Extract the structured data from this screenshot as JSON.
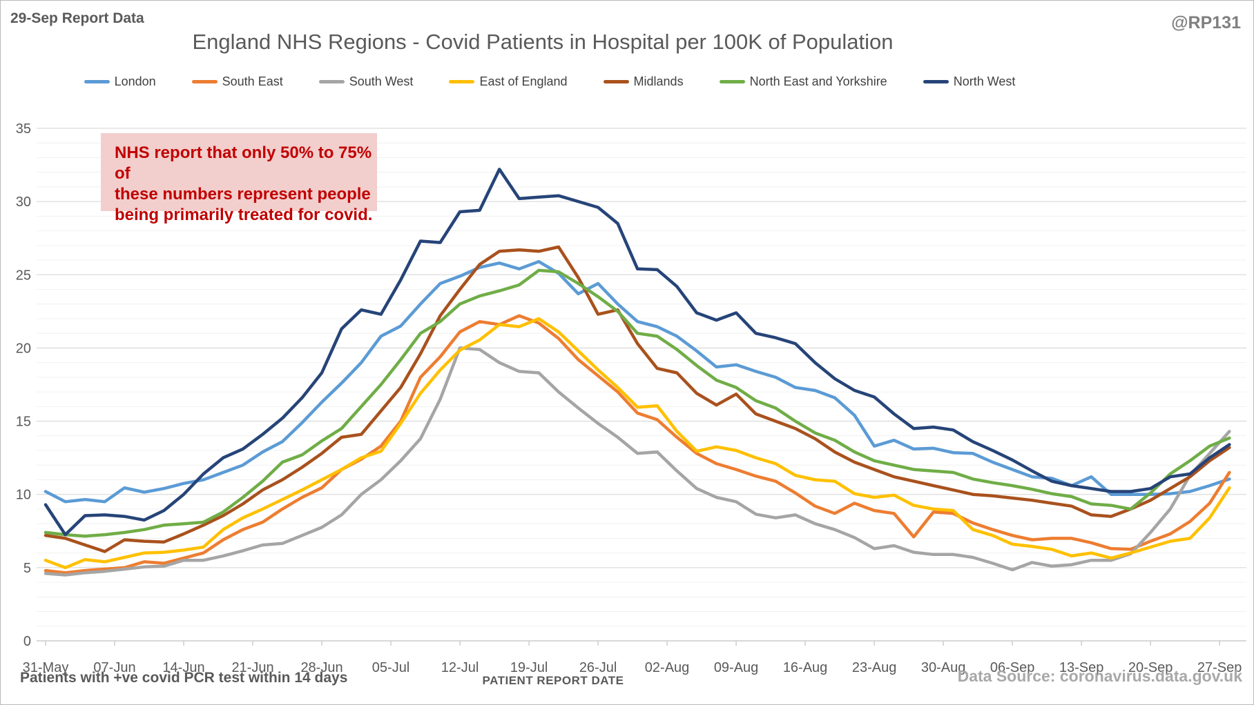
{
  "header": {
    "report_label": "29-Sep Report Data",
    "handle": "@RP131",
    "title": "England NHS Regions - Covid Patients in Hospital per 100K of Population"
  },
  "annotation": {
    "lines": [
      "NHS report that only 50% to 75% of",
      "these numbers represent people",
      "being primarily treated for covid."
    ]
  },
  "footer": {
    "left": "Patients with +ve covid PCR test within 14 days",
    "axis_title": "PATIENT REPORT DATE",
    "source": "Data Source: coronavirus.data.gov.uk"
  },
  "chart_data": {
    "type": "line",
    "title": "England NHS Regions - Covid Patients in Hospital per 100K of Population",
    "xlabel": "PATIENT REPORT DATE",
    "ylabel": "",
    "ylim": [
      0,
      35
    ],
    "y_ticks": [
      0,
      5,
      10,
      15,
      20,
      25,
      30,
      35
    ],
    "grid": "horizontal, minor every 1, major every 5",
    "legend_position": "top",
    "x_unit": "days since 31-May, data sampled every 2 days, series end 28-Sep",
    "x_step": 2,
    "x_total_days": 120,
    "x_ticks": [
      {
        "label": "31-May",
        "day": 0
      },
      {
        "label": "07-Jun",
        "day": 7
      },
      {
        "label": "14-Jun",
        "day": 14
      },
      {
        "label": "21-Jun",
        "day": 21
      },
      {
        "label": "28-Jun",
        "day": 28
      },
      {
        "label": "05-Jul",
        "day": 35
      },
      {
        "label": "12-Jul",
        "day": 42
      },
      {
        "label": "19-Jul",
        "day": 49
      },
      {
        "label": "26-Jul",
        "day": 56
      },
      {
        "label": "02-Aug",
        "day": 63
      },
      {
        "label": "09-Aug",
        "day": 70
      },
      {
        "label": "16-Aug",
        "day": 77
      },
      {
        "label": "23-Aug",
        "day": 84
      },
      {
        "label": "30-Aug",
        "day": 91
      },
      {
        "label": "06-Sep",
        "day": 98
      },
      {
        "label": "13-Sep",
        "day": 105
      },
      {
        "label": "20-Sep",
        "day": 112
      },
      {
        "label": "27-Sep",
        "day": 119
      }
    ],
    "series": [
      {
        "name": "London",
        "color": "#5B9BD5",
        "values": [
          10.2,
          9.5,
          9.65,
          9.5,
          10.45,
          10.15,
          10.4,
          10.75,
          11.0,
          11.5,
          12.0,
          12.9,
          13.6,
          14.9,
          16.3,
          17.6,
          19.0,
          20.8,
          21.5,
          23.0,
          24.4,
          24.9,
          25.5,
          25.8,
          25.4,
          25.9,
          25.1,
          23.7,
          24.4,
          23.0,
          21.8,
          21.45,
          20.8,
          19.8,
          18.7,
          18.85,
          18.4,
          18.0,
          17.3,
          17.1,
          16.6,
          15.4,
          13.3,
          13.7,
          13.1,
          13.15,
          12.85,
          12.8,
          12.2,
          11.7,
          11.2,
          11.1,
          10.6,
          11.2,
          10.0,
          10.0,
          10.0,
          10.05,
          10.2,
          10.6,
          11.05
        ]
      },
      {
        "name": "South East",
        "color": "#ED7D31",
        "values": [
          4.8,
          4.65,
          4.8,
          4.9,
          5.0,
          5.4,
          5.3,
          5.65,
          6.0,
          6.9,
          7.6,
          8.1,
          9.0,
          9.8,
          10.45,
          11.7,
          12.4,
          13.3,
          15.0,
          18.0,
          19.4,
          21.1,
          21.8,
          21.6,
          22.2,
          21.7,
          20.65,
          19.2,
          18.1,
          17.0,
          15.55,
          15.1,
          13.9,
          12.8,
          12.1,
          11.7,
          11.25,
          10.9,
          10.1,
          9.2,
          8.7,
          9.4,
          8.9,
          8.7,
          7.1,
          8.8,
          8.7,
          8.05,
          7.6,
          7.2,
          6.9,
          7.0,
          7.0,
          6.7,
          6.3,
          6.25,
          6.8,
          7.3,
          8.15,
          9.4,
          11.5
        ]
      },
      {
        "name": "South West",
        "color": "#A5A5A5",
        "values": [
          4.6,
          4.5,
          4.65,
          4.75,
          4.9,
          5.05,
          5.1,
          5.5,
          5.5,
          5.8,
          6.15,
          6.55,
          6.65,
          7.2,
          7.75,
          8.6,
          10.0,
          11.0,
          12.3,
          13.8,
          16.5,
          20.0,
          19.9,
          19.0,
          18.4,
          18.3,
          17.0,
          15.9,
          14.85,
          13.9,
          12.8,
          12.9,
          11.6,
          10.4,
          9.8,
          9.5,
          8.65,
          8.4,
          8.6,
          8.0,
          7.6,
          7.05,
          6.3,
          6.5,
          6.05,
          5.9,
          5.9,
          5.7,
          5.3,
          4.85,
          5.35,
          5.1,
          5.2,
          5.5,
          5.5,
          5.95,
          7.4,
          9.0,
          11.3,
          12.8,
          14.3
        ]
      },
      {
        "name": "East of England",
        "color": "#FFC000",
        "values": [
          5.5,
          5.0,
          5.55,
          5.4,
          5.7,
          6.0,
          6.05,
          6.2,
          6.4,
          7.6,
          8.4,
          9.0,
          9.65,
          10.3,
          11.0,
          11.7,
          12.5,
          12.95,
          14.85,
          16.9,
          18.5,
          19.85,
          20.55,
          21.6,
          21.45,
          22.0,
          21.1,
          19.8,
          18.5,
          17.3,
          15.95,
          16.05,
          14.3,
          12.95,
          13.25,
          13.0,
          12.5,
          12.1,
          11.3,
          11.0,
          10.9,
          10.05,
          9.8,
          9.95,
          9.25,
          9.0,
          8.9,
          7.6,
          7.2,
          6.6,
          6.45,
          6.25,
          5.8,
          6.0,
          5.65,
          6.0,
          6.4,
          6.8,
          7.0,
          8.4,
          10.45
        ]
      },
      {
        "name": "Midlands",
        "color": "#A9511D",
        "values": [
          7.2,
          7.0,
          6.55,
          6.1,
          6.9,
          6.8,
          6.75,
          7.3,
          7.9,
          8.55,
          9.35,
          10.3,
          11.0,
          11.85,
          12.8,
          13.9,
          14.1,
          15.7,
          17.3,
          19.6,
          22.2,
          24.0,
          25.7,
          26.6,
          26.7,
          26.6,
          26.9,
          24.8,
          22.3,
          22.6,
          20.3,
          18.6,
          18.3,
          16.9,
          16.1,
          16.85,
          15.5,
          15.0,
          14.5,
          13.8,
          12.9,
          12.2,
          11.7,
          11.2,
          10.9,
          10.6,
          10.3,
          10.0,
          9.9,
          9.75,
          9.6,
          9.4,
          9.2,
          8.6,
          8.5,
          9.0,
          9.6,
          10.4,
          11.2,
          12.3,
          13.2
        ]
      },
      {
        "name": "North East and Yorkshire",
        "color": "#70AD47",
        "values": [
          7.4,
          7.25,
          7.15,
          7.25,
          7.4,
          7.6,
          7.9,
          8.0,
          8.1,
          8.8,
          9.8,
          10.9,
          12.2,
          12.7,
          13.65,
          14.5,
          16.0,
          17.5,
          19.2,
          21.0,
          21.8,
          23.0,
          23.55,
          23.9,
          24.3,
          25.3,
          25.2,
          24.4,
          23.5,
          22.5,
          21.0,
          20.8,
          19.9,
          18.8,
          17.8,
          17.3,
          16.4,
          15.9,
          15.0,
          14.2,
          13.7,
          12.9,
          12.3,
          12.0,
          11.7,
          11.6,
          11.5,
          11.05,
          10.8,
          10.6,
          10.35,
          10.05,
          9.85,
          9.35,
          9.25,
          9.0,
          10.1,
          11.4,
          12.3,
          13.3,
          13.85
        ]
      },
      {
        "name": "North West",
        "color": "#264478",
        "values": [
          9.3,
          7.25,
          8.55,
          8.6,
          8.5,
          8.25,
          8.9,
          10.0,
          11.4,
          12.5,
          13.1,
          14.1,
          15.2,
          16.6,
          18.3,
          21.3,
          22.6,
          22.3,
          24.65,
          27.3,
          27.2,
          29.3,
          29.4,
          32.2,
          30.2,
          30.3,
          30.4,
          30.0,
          29.6,
          28.5,
          25.4,
          25.35,
          24.2,
          22.4,
          21.9,
          22.4,
          21.0,
          20.7,
          20.3,
          19.0,
          17.9,
          17.1,
          16.65,
          15.5,
          14.5,
          14.6,
          14.4,
          13.6,
          13.0,
          12.35,
          11.6,
          10.9,
          10.6,
          10.4,
          10.2,
          10.2,
          10.4,
          11.2,
          11.4,
          12.5,
          13.4
        ]
      }
    ]
  }
}
